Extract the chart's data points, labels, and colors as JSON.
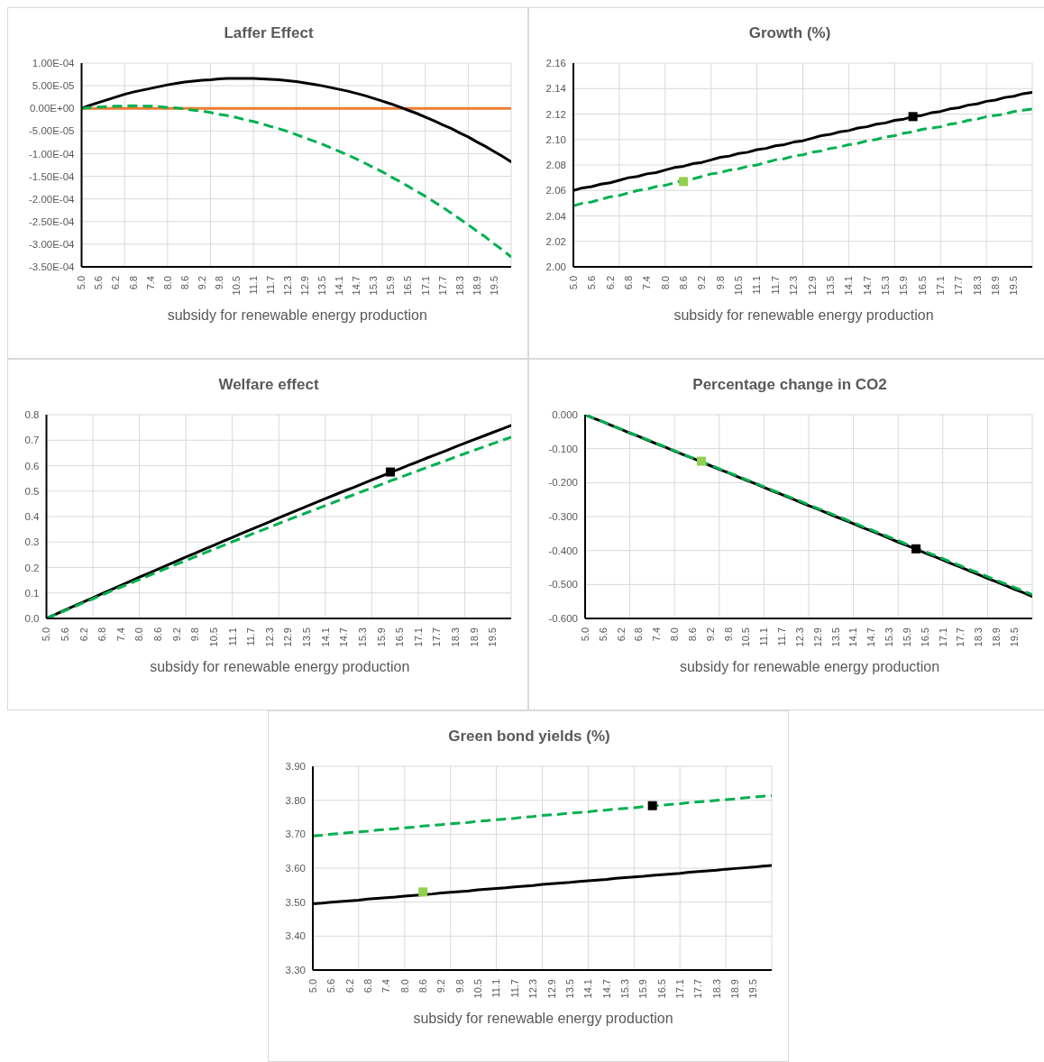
{
  "chart_data": [
    {
      "type": "line",
      "title": "Laffer Effect",
      "xlabel": "subsidy for renewable energy production",
      "grid": true,
      "marker": "none",
      "line_style": "solid",
      "categories": [
        "5.0",
        null,
        "5.6",
        null,
        "6.2",
        null,
        "6.8",
        null,
        "7.4",
        null,
        "8.0",
        null,
        "8.6",
        null,
        "9.2",
        null,
        "9.8",
        null,
        "10.5",
        null,
        "11.1",
        null,
        "11.7",
        null,
        "12.3",
        null,
        "12.9",
        null,
        "13.5",
        null,
        "14.1",
        null,
        "14.7",
        null,
        "15.3",
        null,
        "15.9",
        null,
        "16.5",
        null,
        "17.1",
        null,
        "17.7",
        null,
        "18.3",
        null,
        "18.9",
        null,
        "19.5",
        null,
        null
      ],
      "ylim": [
        -0.00035,
        0.0001
      ],
      "yticks": [
        {
          "value": -0.00035,
          "label": "-3.50E-04"
        },
        {
          "value": -0.0003,
          "label": "-3.00E-04"
        },
        {
          "value": -0.00025,
          "label": "-2.50E-04"
        },
        {
          "value": -0.0002,
          "label": "-2.00E-04"
        },
        {
          "value": -0.00015,
          "label": "-1.50E-04"
        },
        {
          "value": -0.0001,
          "label": "-1.00E-04"
        },
        {
          "value": -5e-05,
          "label": "-5.00E-05"
        },
        {
          "value": 0,
          "label": "0.00E+00"
        },
        {
          "value": 5e-05,
          "label": "5.00E-05"
        },
        {
          "value": 0.0001,
          "label": "1.00E-04"
        }
      ],
      "series": [
        {
          "color": "#ed7d31",
          "values": [
            0,
            0,
            0,
            0,
            0,
            0,
            0,
            0,
            0,
            0,
            0,
            0,
            0,
            0,
            0,
            0,
            0,
            0,
            0,
            0,
            0,
            0,
            0,
            0,
            0,
            0,
            0,
            0,
            0,
            0,
            0,
            0,
            0,
            0,
            0,
            0,
            0,
            0,
            0,
            0,
            0,
            0,
            0,
            0,
            0,
            0,
            0,
            0,
            0,
            0,
            0
          ]
        },
        {
          "color": "#000000",
          "values": [
            0,
            7e-06,
            1.3e-05,
            1.9e-05,
            2.5e-05,
            3.1e-05,
            3.6e-05,
            4e-05,
            4.4e-05,
            4.8e-05,
            5.2e-05,
            5.5e-05,
            5.8e-05,
            6e-05,
            6.2e-05,
            6.3e-05,
            6.5e-05,
            6.6e-05,
            6.6e-05,
            6.6e-05,
            6.6e-05,
            6.5e-05,
            6.4e-05,
            6.3e-05,
            6.1e-05,
            5.9e-05,
            5.6e-05,
            5.3e-05,
            5e-05,
            4.6e-05,
            4.2e-05,
            3.8e-05,
            3.3e-05,
            2.8e-05,
            2.2e-05,
            1.6e-05,
            1e-05,
            3e-06,
            -4e-06,
            -1.1e-05,
            -1.9e-05,
            -2.7e-05,
            -3.6e-05,
            -4.4e-05,
            -5.4e-05,
            -6.3e-05,
            -7.4e-05,
            -8.4e-05,
            -9.5e-05,
            -0.000106,
            -0.000118
          ]
        },
        {
          "color": "#00b050",
          "line_style": "dashed",
          "values": [
            0,
            2e-06,
            3e-06,
            4e-06,
            5e-06,
            5e-06,
            6e-06,
            5e-06,
            5e-06,
            4e-06,
            2e-06,
            1e-06,
            -1e-06,
            -4e-06,
            -6e-06,
            -9e-06,
            -1.3e-05,
            -1.6e-05,
            -2e-05,
            -2.5e-05,
            -2.9e-05,
            -3.4e-05,
            -4e-05,
            -4.5e-05,
            -5.1e-05,
            -5.8e-05,
            -6.5e-05,
            -7.2e-05,
            -7.9e-05,
            -8.7e-05,
            -9.5e-05,
            -0.000103,
            -0.000112,
            -0.000121,
            -0.000131,
            -0.00014,
            -0.000151,
            -0.000161,
            -0.000172,
            -0.000183,
            -0.000194,
            -0.000206,
            -0.000218,
            -0.000231,
            -0.000244,
            -0.000257,
            -0.000271,
            -0.000284,
            -0.000299,
            -0.000313,
            -0.000328
          ]
        }
      ]
    },
    {
      "type": "line",
      "title": "Growth (%)",
      "xlabel": "subsidy for renewable energy production",
      "grid": true,
      "marker": "none",
      "line_style": "solid",
      "categories": [
        "5.0",
        null,
        "5.6",
        null,
        "6.2",
        null,
        "6.8",
        null,
        "7.4",
        null,
        "8.0",
        null,
        "8.6",
        null,
        "9.2",
        null,
        "9.8",
        null,
        "10.5",
        null,
        "11.1",
        null,
        "11.7",
        null,
        "12.3",
        null,
        "12.9",
        null,
        "13.5",
        null,
        "14.1",
        null,
        "14.7",
        null,
        "15.3",
        null,
        "15.9",
        null,
        "16.5",
        null,
        "17.1",
        null,
        "17.7",
        null,
        "18.3",
        null,
        "18.9",
        null,
        "19.5",
        null,
        null
      ],
      "ylim": [
        2,
        2.16
      ],
      "yticks": [
        {
          "value": 2,
          "label": "2.00"
        },
        {
          "value": 2.02,
          "label": "2.02"
        },
        {
          "value": 2.04,
          "label": "2.04"
        },
        {
          "value": 2.06,
          "label": "2.06"
        },
        {
          "value": 2.08,
          "label": "2.08"
        },
        {
          "value": 2.1,
          "label": "2.10"
        },
        {
          "value": 2.12,
          "label": "2.12"
        },
        {
          "value": 2.14,
          "label": "2.14"
        },
        {
          "value": 2.16,
          "label": "2.16"
        }
      ],
      "series": [
        {
          "color": "#000000",
          "values": [
            2.06,
            2.062,
            2.063,
            2.065,
            2.066,
            2.068,
            2.07,
            2.071,
            2.073,
            2.074,
            2.076,
            2.078,
            2.079,
            2.081,
            2.082,
            2.084,
            2.086,
            2.087,
            2.089,
            2.09,
            2.092,
            2.093,
            2.095,
            2.096,
            2.098,
            2.099,
            2.101,
            2.103,
            2.104,
            2.106,
            2.107,
            2.109,
            2.11,
            2.112,
            2.113,
            2.115,
            2.116,
            2.118,
            2.119,
            2.121,
            2.122,
            2.124,
            2.125,
            2.127,
            2.128,
            2.13,
            2.131,
            2.133,
            2.134,
            2.136,
            2.137
          ]
        },
        {
          "color": "#00b050",
          "line_style": "dashed",
          "values": [
            2.048,
            2.05,
            2.051,
            2.053,
            2.055,
            2.056,
            2.058,
            2.06,
            2.061,
            2.063,
            2.064,
            2.066,
            2.068,
            2.069,
            2.071,
            2.073,
            2.074,
            2.076,
            2.077,
            2.079,
            2.08,
            2.082,
            2.084,
            2.085,
            2.087,
            2.088,
            2.09,
            2.091,
            2.093,
            2.094,
            2.096,
            2.097,
            2.099,
            2.1,
            2.102,
            2.103,
            2.105,
            2.106,
            2.108,
            2.109,
            2.11,
            2.112,
            2.113,
            2.115,
            2.116,
            2.118,
            2.119,
            2.12,
            2.122,
            2.123,
            2.124
          ]
        },
        {
          "type": "scatter",
          "marker": "square",
          "color": "#000000",
          "values": [
            null,
            null,
            null,
            null,
            null,
            null,
            null,
            null,
            null,
            null,
            null,
            null,
            null,
            null,
            null,
            null,
            null,
            null,
            null,
            null,
            null,
            null,
            null,
            null,
            null,
            null,
            null,
            null,
            null,
            null,
            null,
            null,
            null,
            null,
            null,
            null,
            null,
            2.118,
            null,
            null,
            null,
            null,
            null,
            null,
            null,
            null,
            null,
            null,
            null,
            null,
            null
          ]
        },
        {
          "type": "scatter",
          "marker": "square",
          "color": "#92d050",
          "values": [
            null,
            null,
            null,
            null,
            null,
            null,
            null,
            null,
            null,
            null,
            null,
            null,
            2.067,
            null,
            null,
            null,
            null,
            null,
            null,
            null,
            null,
            null,
            null,
            null,
            null,
            null,
            null,
            null,
            null,
            null,
            null,
            null,
            null,
            null,
            null,
            null,
            null,
            null,
            null,
            null,
            null,
            null,
            null,
            null,
            null,
            null,
            null,
            null,
            null,
            null,
            null
          ]
        }
      ]
    },
    {
      "type": "line",
      "title": "Welfare effect",
      "xlabel": "subsidy for renewable energy production",
      "grid": true,
      "marker": "none",
      "line_style": "solid",
      "categories": [
        "5.0",
        null,
        "5.6",
        null,
        "6.2",
        null,
        "6.8",
        null,
        "7.4",
        null,
        "8.0",
        null,
        "8.6",
        null,
        "9.2",
        null,
        "9.8",
        null,
        "10.5",
        null,
        "11.1",
        null,
        "11.7",
        null,
        "12.3",
        null,
        "12.9",
        null,
        "13.5",
        null,
        "14.1",
        null,
        "14.7",
        null,
        "15.3",
        null,
        "15.9",
        null,
        "16.5",
        null,
        "17.1",
        null,
        "17.7",
        null,
        "18.3",
        null,
        "18.9",
        null,
        "19.5",
        null,
        null
      ],
      "ylim": [
        0,
        0.8
      ],
      "yticks": [
        {
          "value": 0,
          "label": "0.0"
        },
        {
          "value": 0.1,
          "label": "0.1"
        },
        {
          "value": 0.2,
          "label": "0.2"
        },
        {
          "value": 0.3,
          "label": "0.3"
        },
        {
          "value": 0.4,
          "label": "0.4"
        },
        {
          "value": 0.5,
          "label": "0.5"
        },
        {
          "value": 0.6,
          "label": "0.6"
        },
        {
          "value": 0.7,
          "label": "0.7"
        },
        {
          "value": 0.8,
          "label": "0.8"
        }
      ],
      "series": [
        {
          "color": "#000000",
          "values": [
            0,
            0.016,
            0.033,
            0.049,
            0.065,
            0.081,
            0.098,
            0.114,
            0.13,
            0.146,
            0.162,
            0.177,
            0.193,
            0.209,
            0.225,
            0.241,
            0.256,
            0.272,
            0.287,
            0.303,
            0.318,
            0.334,
            0.349,
            0.364,
            0.379,
            0.395,
            0.41,
            0.425,
            0.44,
            0.455,
            0.47,
            0.485,
            0.5,
            0.514,
            0.529,
            0.544,
            0.558,
            0.573,
            0.587,
            0.602,
            0.616,
            0.631,
            0.645,
            0.659,
            0.674,
            0.688,
            0.702,
            0.716,
            0.73,
            0.744,
            0.758
          ]
        },
        {
          "color": "#00b050",
          "line_style": "dashed",
          "values": [
            0,
            0.016,
            0.031,
            0.046,
            0.062,
            0.077,
            0.092,
            0.108,
            0.123,
            0.138,
            0.153,
            0.168,
            0.183,
            0.198,
            0.213,
            0.227,
            0.242,
            0.257,
            0.272,
            0.286,
            0.301,
            0.315,
            0.33,
            0.344,
            0.358,
            0.373,
            0.387,
            0.401,
            0.415,
            0.429,
            0.443,
            0.457,
            0.471,
            0.485,
            0.499,
            0.512,
            0.526,
            0.54,
            0.553,
            0.567,
            0.58,
            0.594,
            0.607,
            0.62,
            0.634,
            0.647,
            0.66,
            0.673,
            0.686,
            0.699,
            0.712
          ]
        },
        {
          "type": "scatter",
          "marker": "square",
          "color": "#000000",
          "values": [
            null,
            null,
            null,
            null,
            null,
            null,
            null,
            null,
            null,
            null,
            null,
            null,
            null,
            null,
            null,
            null,
            null,
            null,
            null,
            null,
            null,
            null,
            null,
            null,
            null,
            null,
            null,
            null,
            null,
            null,
            null,
            null,
            null,
            null,
            null,
            null,
            null,
            0.575,
            null,
            null,
            null,
            null,
            null,
            null,
            null,
            null,
            null,
            null,
            null,
            null,
            null
          ]
        }
      ]
    },
    {
      "type": "line",
      "title": "Percentage change in CO2",
      "xlabel": "subsidy for renewable energy production",
      "grid": true,
      "marker": "none",
      "line_style": "solid",
      "categories": [
        "5.0",
        null,
        "5.6",
        null,
        "6.2",
        null,
        "6.8",
        null,
        "7.4",
        null,
        "8.0",
        null,
        "8.6",
        null,
        "9.2",
        null,
        "9.8",
        null,
        "10.5",
        null,
        "11.1",
        null,
        "11.7",
        null,
        "12.3",
        null,
        "12.9",
        null,
        "13.5",
        null,
        "14.1",
        null,
        "14.7",
        null,
        "15.3",
        null,
        "15.9",
        null,
        "16.5",
        null,
        "17.1",
        null,
        "17.7",
        null,
        "18.3",
        null,
        "18.9",
        null,
        "19.5",
        null,
        null
      ],
      "ylim": [
        -0.6,
        0
      ],
      "yticks": [
        {
          "value": -0.6,
          "label": "-0.600"
        },
        {
          "value": -0.5,
          "label": "-0.500"
        },
        {
          "value": -0.4,
          "label": "-0.400"
        },
        {
          "value": -0.3,
          "label": "-0.300"
        },
        {
          "value": -0.2,
          "label": "-0.200"
        },
        {
          "value": -0.1,
          "label": "-0.100"
        },
        {
          "value": 0,
          "label": "0.000"
        }
      ],
      "series": [
        {
          "color": "#000000",
          "values": [
            0,
            -0.011,
            -0.021,
            -0.032,
            -0.043,
            -0.054,
            -0.064,
            -0.075,
            -0.086,
            -0.096,
            -0.107,
            -0.118,
            -0.128,
            -0.139,
            -0.15,
            -0.161,
            -0.171,
            -0.182,
            -0.193,
            -0.203,
            -0.214,
            -0.225,
            -0.235,
            -0.246,
            -0.257,
            -0.268,
            -0.278,
            -0.289,
            -0.3,
            -0.31,
            -0.321,
            -0.332,
            -0.342,
            -0.353,
            -0.364,
            -0.375,
            -0.385,
            -0.396,
            -0.407,
            -0.417,
            -0.428,
            -0.439,
            -0.449,
            -0.46,
            -0.471,
            -0.482,
            -0.492,
            -0.503,
            -0.514,
            -0.524,
            -0.535
          ]
        },
        {
          "color": "#00b050",
          "line_style": "dashed",
          "values": [
            0,
            -0.011,
            -0.021,
            -0.032,
            -0.042,
            -0.053,
            -0.064,
            -0.074,
            -0.085,
            -0.095,
            -0.106,
            -0.117,
            -0.127,
            -0.138,
            -0.148,
            -0.159,
            -0.17,
            -0.18,
            -0.191,
            -0.201,
            -0.212,
            -0.223,
            -0.233,
            -0.244,
            -0.254,
            -0.265,
            -0.276,
            -0.286,
            -0.297,
            -0.307,
            -0.318,
            -0.329,
            -0.339,
            -0.35,
            -0.36,
            -0.371,
            -0.382,
            -0.392,
            -0.403,
            -0.413,
            -0.424,
            -0.435,
            -0.445,
            -0.456,
            -0.466,
            -0.477,
            -0.488,
            -0.498,
            -0.509,
            -0.519,
            -0.53
          ]
        },
        {
          "type": "scatter",
          "marker": "square",
          "color": "#92d050",
          "values": [
            null,
            null,
            null,
            null,
            null,
            null,
            null,
            null,
            null,
            null,
            null,
            null,
            null,
            -0.137,
            null,
            null,
            null,
            null,
            null,
            null,
            null,
            null,
            null,
            null,
            null,
            null,
            null,
            null,
            null,
            null,
            null,
            null,
            null,
            null,
            null,
            null,
            null,
            null,
            null,
            null,
            null,
            null,
            null,
            null,
            null,
            null,
            null,
            null,
            null,
            null,
            null
          ]
        },
        {
          "type": "scatter",
          "marker": "square",
          "color": "#000000",
          "values": [
            null,
            null,
            null,
            null,
            null,
            null,
            null,
            null,
            null,
            null,
            null,
            null,
            null,
            null,
            null,
            null,
            null,
            null,
            null,
            null,
            null,
            null,
            null,
            null,
            null,
            null,
            null,
            null,
            null,
            null,
            null,
            null,
            null,
            null,
            null,
            null,
            null,
            -0.395,
            null,
            null,
            null,
            null,
            null,
            null,
            null,
            null,
            null,
            null,
            null,
            null,
            null
          ]
        }
      ]
    },
    {
      "type": "line",
      "title": "Green bond yields (%)",
      "xlabel": "subsidy for renewable energy production",
      "grid": true,
      "marker": "none",
      "line_style": "solid",
      "categories": [
        "5.0",
        null,
        "5.6",
        null,
        "6.2",
        null,
        "6.8",
        null,
        "7.4",
        null,
        "8.0",
        null,
        "8.6",
        null,
        "9.2",
        null,
        "9.8",
        null,
        "10.5",
        null,
        "11.1",
        null,
        "11.7",
        null,
        "12.3",
        null,
        "12.9",
        null,
        "13.5",
        null,
        "14.1",
        null,
        "14.7",
        null,
        "15.3",
        null,
        "15.9",
        null,
        "16.5",
        null,
        "17.1",
        null,
        "17.7",
        null,
        "18.3",
        null,
        "18.9",
        null,
        "19.5",
        null,
        null
      ],
      "ylim": [
        3.3,
        3.9
      ],
      "yticks": [
        {
          "value": 3.3,
          "label": "3.30"
        },
        {
          "value": 3.4,
          "label": "3.40"
        },
        {
          "value": 3.5,
          "label": "3.50"
        },
        {
          "value": 3.6,
          "label": "3.60"
        },
        {
          "value": 3.7,
          "label": "3.70"
        },
        {
          "value": 3.8,
          "label": "3.80"
        },
        {
          "value": 3.9,
          "label": "3.90"
        }
      ],
      "series": [
        {
          "color": "#000000",
          "values": [
            3.495,
            3.497,
            3.5,
            3.502,
            3.504,
            3.506,
            3.509,
            3.511,
            3.513,
            3.515,
            3.518,
            3.52,
            3.522,
            3.524,
            3.527,
            3.529,
            3.531,
            3.533,
            3.536,
            3.538,
            3.54,
            3.542,
            3.545,
            3.547,
            3.549,
            3.552,
            3.554,
            3.556,
            3.558,
            3.561,
            3.563,
            3.565,
            3.567,
            3.57,
            3.572,
            3.574,
            3.576,
            3.579,
            3.581,
            3.583,
            3.585,
            3.588,
            3.59,
            3.592,
            3.594,
            3.597,
            3.599,
            3.601,
            3.603,
            3.606,
            3.608
          ]
        },
        {
          "color": "#00b050",
          "line_style": "dashed",
          "values": [
            3.695,
            3.697,
            3.7,
            3.702,
            3.705,
            3.707,
            3.709,
            3.712,
            3.714,
            3.716,
            3.719,
            3.721,
            3.724,
            3.726,
            3.728,
            3.731,
            3.733,
            3.735,
            3.738,
            3.74,
            3.743,
            3.745,
            3.747,
            3.75,
            3.752,
            3.755,
            3.757,
            3.759,
            3.762,
            3.764,
            3.766,
            3.769,
            3.771,
            3.774,
            3.776,
            3.778,
            3.781,
            3.783,
            3.785,
            3.788,
            3.79,
            3.793,
            3.795,
            3.797,
            3.8,
            3.802,
            3.804,
            3.807,
            3.809,
            3.812,
            3.814
          ]
        },
        {
          "type": "scatter",
          "marker": "square",
          "color": "#000000",
          "values": [
            null,
            null,
            null,
            null,
            null,
            null,
            null,
            null,
            null,
            null,
            null,
            null,
            null,
            null,
            null,
            null,
            null,
            null,
            null,
            null,
            null,
            null,
            null,
            null,
            null,
            null,
            null,
            null,
            null,
            null,
            null,
            null,
            null,
            null,
            null,
            null,
            null,
            3.784,
            null,
            null,
            null,
            null,
            null,
            null,
            null,
            null,
            null,
            null,
            null,
            null,
            null
          ]
        },
        {
          "type": "scatter",
          "marker": "square",
          "color": "#92d050",
          "values": [
            null,
            null,
            null,
            null,
            null,
            null,
            null,
            null,
            null,
            null,
            null,
            null,
            3.53,
            null,
            null,
            null,
            null,
            null,
            null,
            null,
            null,
            null,
            null,
            null,
            null,
            null,
            null,
            null,
            null,
            null,
            null,
            null,
            null,
            null,
            null,
            null,
            null,
            null,
            null,
            null,
            null,
            null,
            null,
            null,
            null,
            null,
            null,
            null,
            null,
            null,
            null
          ]
        }
      ]
    }
  ]
}
